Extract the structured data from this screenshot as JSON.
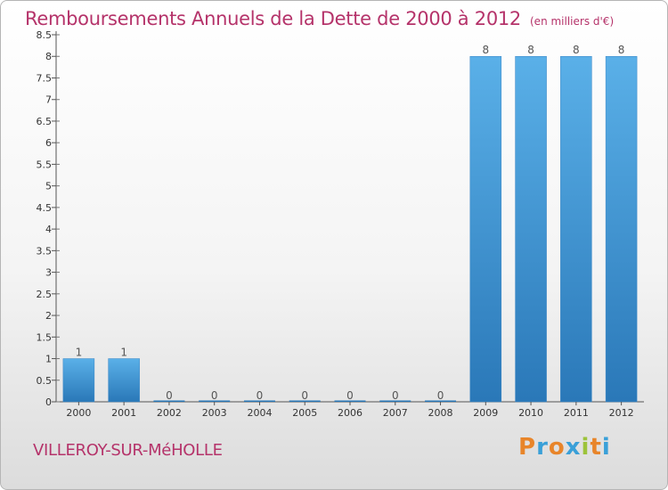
{
  "title": "Remboursements Annuels de la Dette de 2000 à 2012",
  "subtitle": "(en milliers d'€)",
  "place": "VILLEROY-SUR-MéHOLLE",
  "logo": {
    "letters": [
      "P",
      "r",
      "o",
      "x",
      "i",
      "t",
      "i"
    ],
    "colors": [
      "#e8852a",
      "#3aa0d8",
      "#e8852a",
      "#3aa0d8",
      "#9cc33a",
      "#e8852a",
      "#3aa0d8"
    ]
  },
  "colors": {
    "title": "#b5336a",
    "bar_top": "#5ab0e8",
    "bar_bottom": "#2a78b8"
  },
  "chart_data": {
    "type": "bar",
    "categories": [
      "2000",
      "2001",
      "2002",
      "2003",
      "2004",
      "2005",
      "2006",
      "2007",
      "2008",
      "2009",
      "2010",
      "2011",
      "2012"
    ],
    "values": [
      1,
      1,
      0,
      0,
      0,
      0,
      0,
      0,
      0,
      8,
      8,
      8,
      8
    ],
    "data_labels": [
      "1",
      "1",
      "0",
      "0",
      "0",
      "0",
      "0",
      "0",
      "0",
      "8",
      "8",
      "8",
      "8"
    ],
    "yticks": [
      "0",
      "0.5",
      "1",
      "1.5",
      "2",
      "2.5",
      "3",
      "3.5",
      "4",
      "4.5",
      "5",
      "5.5",
      "6",
      "6.5",
      "7",
      "7.5",
      "8",
      "8.5"
    ],
    "ylim": [
      0,
      8.5
    ],
    "grid": false,
    "title": "Remboursements Annuels de la Dette de 2000 à 2012",
    "xlabel": "",
    "ylabel": ""
  }
}
